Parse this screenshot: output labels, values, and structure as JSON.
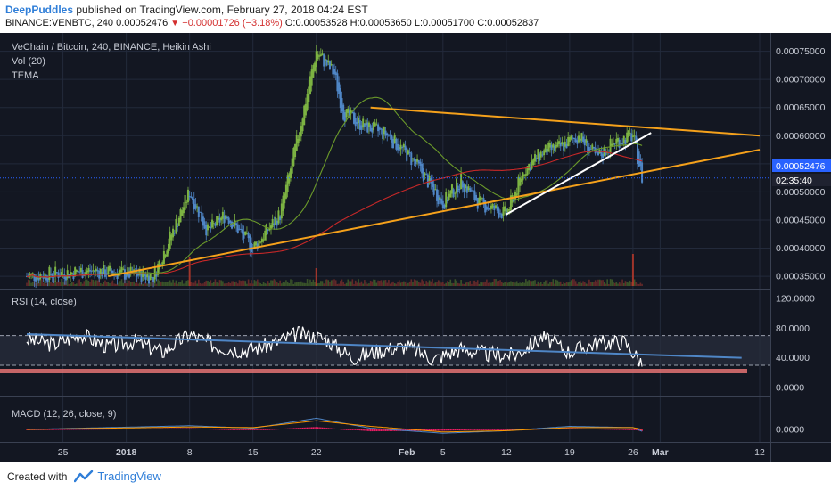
{
  "header": {
    "author": "DeepPuddles",
    "published_text": "published on TradingView.com, February 27, 2018 04:24 EST",
    "symbol": "BINANCE:VENBTC, 240",
    "last": "0.00052476",
    "change": "−0.00001726 (−3.18%)",
    "open": "O:0.00053528",
    "high": "H:0.00053650",
    "low": "L:0.00051700",
    "close": "C:0.00052837"
  },
  "legend": {
    "title": "VeChain / Bitcoin, 240, BINANCE, Heikin Ashi",
    "vol": "Vol (20)",
    "tema": "TEMA",
    "rsi": "RSI (14, close)",
    "macd": "MACD (12, 26, close, 9)"
  },
  "price_axis": {
    "ticks": [
      "0.00075000",
      "0.00070000",
      "0.00065000",
      "0.00060000",
      "0.00055000",
      "0.00050000",
      "0.00045000",
      "0.00040000",
      "0.00035000"
    ],
    "last_label": "0.00052476",
    "countdown": "02:35:40"
  },
  "rsi_axis": {
    "ticks": [
      "120.0000",
      "80.0000",
      "40.0000",
      "0.0000"
    ]
  },
  "macd_axis": {
    "ticks": [
      "0.0000"
    ]
  },
  "time_axis": {
    "labels": [
      "25",
      "2018",
      "8",
      "15",
      "22",
      "Feb",
      "5",
      "12",
      "19",
      "26",
      "Mar",
      "12"
    ]
  },
  "footer": {
    "created": "Created with",
    "brand": "TradingView"
  },
  "colors": {
    "background": "#131722",
    "grid": "#232a3b",
    "candle_up": "#7cb342",
    "candle_down": "#4f86c6",
    "trendline_orange": "#f5a11b",
    "trendline_white": "#ffffff",
    "ma_red": "#d32f2f",
    "ma_green": "#6b9a2a",
    "rsi_line": "#ffffff",
    "rsi_trend": "#4f86c6",
    "rsi_band": "#e57373",
    "macd_line": "#4f86c6",
    "signal_line": "#ff9800",
    "hist": "#e91e63",
    "last_price": "#2962ff"
  },
  "chart_data": [
    {
      "type": "candlestick",
      "title": "VeChain / Bitcoin, 240, BINANCE, Heikin Ashi",
      "x_range": [
        "2017-12-21",
        "2018-03-12"
      ],
      "ylim": [
        0.00032,
        0.00077
      ],
      "price_path": [
        [
          "2017-12-21",
          0.00035
        ],
        [
          "2017-12-28",
          0.00036
        ],
        [
          "2018-01-04",
          0.00035
        ],
        [
          "2018-01-08",
          0.0005
        ],
        [
          "2018-01-10",
          0.00043
        ],
        [
          "2018-01-12",
          0.00046
        ],
        [
          "2018-01-15",
          0.0004
        ],
        [
          "2018-01-18",
          0.00046
        ],
        [
          "2018-01-20",
          0.0006
        ],
        [
          "2018-01-22",
          0.00075
        ],
        [
          "2018-01-24",
          0.00071
        ],
        [
          "2018-01-25",
          0.00064
        ],
        [
          "2018-01-27",
          0.00062
        ],
        [
          "2018-01-30",
          0.0006
        ],
        [
          "2018-02-02",
          0.00055
        ],
        [
          "2018-02-05",
          0.00048
        ],
        [
          "2018-02-07",
          0.00052
        ],
        [
          "2018-02-09",
          0.00048
        ],
        [
          "2018-02-12",
          0.00046
        ],
        [
          "2018-02-14",
          0.00054
        ],
        [
          "2018-02-16",
          0.00057
        ],
        [
          "2018-02-18",
          0.00058
        ],
        [
          "2018-02-20",
          0.0006
        ],
        [
          "2018-02-22",
          0.00056
        ],
        [
          "2018-02-24",
          0.00059
        ],
        [
          "2018-02-26",
          0.0006
        ],
        [
          "2018-02-27",
          0.000525
        ]
      ],
      "last_price": 0.00052476,
      "volume_spikes": [
        [
          "2018-01-08",
          0.8
        ],
        [
          "2018-01-22",
          0.5
        ],
        [
          "2018-02-26",
          0.9
        ]
      ],
      "trendlines": [
        {
          "color": "orange",
          "from": [
            "2017-12-30",
            0.00035
          ],
          "to": [
            "2018-03-12",
            0.000575
          ]
        },
        {
          "color": "orange",
          "from": [
            "2018-01-28",
            0.00065
          ],
          "to": [
            "2018-03-12",
            0.0006
          ]
        },
        {
          "color": "white",
          "from": [
            "2018-02-12",
            0.00046
          ],
          "to": [
            "2018-02-28",
            0.000605
          ]
        }
      ]
    },
    {
      "type": "line",
      "title": "RSI (14, close)",
      "ylim": [
        0,
        120
      ],
      "bands": [
        30,
        70
      ],
      "series": [
        {
          "name": "RSI (14, close)",
          "points": [
            [
              "2017-12-21",
              65
            ],
            [
              "2017-12-24",
              58
            ],
            [
              "2017-12-27",
              72
            ],
            [
              "2017-12-30",
              55
            ],
            [
              "2018-01-02",
              62
            ],
            [
              "2018-01-05",
              48
            ],
            [
              "2018-01-08",
              72
            ],
            [
              "2018-01-11",
              55
            ],
            [
              "2018-01-14",
              50
            ],
            [
              "2018-01-17",
              58
            ],
            [
              "2018-01-20",
              73
            ],
            [
              "2018-01-23",
              66
            ],
            [
              "2018-01-26",
              40
            ],
            [
              "2018-01-29",
              50
            ],
            [
              "2018-02-01",
              56
            ],
            [
              "2018-02-04",
              38
            ],
            [
              "2018-02-07",
              52
            ],
            [
              "2018-02-10",
              45
            ],
            [
              "2018-02-13",
              44
            ],
            [
              "2018-02-16",
              68
            ],
            [
              "2018-02-19",
              48
            ],
            [
              "2018-02-22",
              60
            ],
            [
              "2018-02-25",
              62
            ],
            [
              "2018-02-27",
              33
            ]
          ]
        }
      ],
      "trendline": {
        "from": [
          "2017-12-21",
          72
        ],
        "to": [
          "2018-03-10",
          40
        ]
      }
    },
    {
      "type": "line",
      "title": "MACD (12, 26, close, 9)",
      "series": [
        {
          "name": "MACD",
          "points": [
            [
              "2017-12-21",
              0
            ],
            [
              "2018-01-08",
              0.6
            ],
            [
              "2018-01-15",
              0.2
            ],
            [
              "2018-01-22",
              1.8
            ],
            [
              "2018-01-28",
              0.2
            ],
            [
              "2018-02-05",
              -0.6
            ],
            [
              "2018-02-12",
              -0.2
            ],
            [
              "2018-02-19",
              0.5
            ],
            [
              "2018-02-26",
              0.3
            ],
            [
              "2018-02-27",
              -0.3
            ]
          ]
        },
        {
          "name": "Signal",
          "points": [
            [
              "2017-12-21",
              0
            ],
            [
              "2018-01-08",
              0.4
            ],
            [
              "2018-01-15",
              0.3
            ],
            [
              "2018-01-22",
              1.4
            ],
            [
              "2018-01-28",
              0.5
            ],
            [
              "2018-02-05",
              -0.4
            ],
            [
              "2018-02-12",
              -0.2
            ],
            [
              "2018-02-19",
              0.3
            ],
            [
              "2018-02-26",
              0.3
            ],
            [
              "2018-02-27",
              0.0
            ]
          ]
        }
      ]
    }
  ]
}
